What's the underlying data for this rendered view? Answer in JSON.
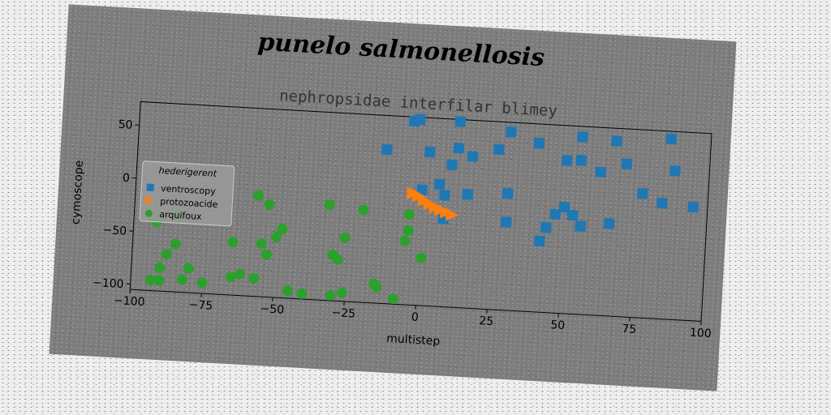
{
  "chart_data": {
    "type": "scatter",
    "suptitle": "punelo salmonellosis",
    "title": "nephropsidae interfilar blimey",
    "xlabel": "multistep",
    "ylabel": "cymoscope",
    "xlim": [
      -100,
      100
    ],
    "ylim": [
      -105,
      72
    ],
    "xticks": [
      -100,
      -75,
      -50,
      -25,
      0,
      25,
      50,
      75,
      100
    ],
    "yticks": [
      -100,
      -50,
      0,
      50
    ],
    "grid": false,
    "legend": {
      "title": "hederigerent",
      "placement": "center-left"
    },
    "series": [
      {
        "name": "ventroscopy",
        "marker": "square",
        "color": "#1f77b4",
        "points": [
          [
            -13,
            40
          ],
          [
            -4,
            68
          ],
          [
            -2,
            70
          ],
          [
            12,
            70
          ],
          [
            30,
            63
          ],
          [
            40,
            54
          ],
          [
            55,
            62
          ],
          [
            67,
            60
          ],
          [
            86,
            65
          ],
          [
            2,
            40
          ],
          [
            12,
            45
          ],
          [
            17,
            38
          ],
          [
            26,
            46
          ],
          [
            50,
            39
          ],
          [
            55,
            40
          ],
          [
            62,
            30
          ],
          [
            71,
            39
          ],
          [
            88,
            35
          ],
          [
            10,
            29
          ],
          [
            6,
            10
          ],
          [
            0,
            4
          ],
          [
            16,
            2
          ],
          [
            30,
            5
          ],
          [
            84,
            4
          ],
          [
            77,
            12
          ],
          [
            95,
            2
          ],
          [
            8,
            0
          ],
          [
            50,
            -5
          ],
          [
            47,
            -12
          ],
          [
            53,
            -12
          ],
          [
            56,
            -22
          ],
          [
            66,
            -18
          ],
          [
            30,
            -22
          ],
          [
            8,
            -22
          ],
          [
            42,
            -38
          ],
          [
            44,
            -25
          ]
        ]
      },
      {
        "name": "protozoacide",
        "marker": "triangle-right",
        "color": "#ff7f0e",
        "points": [
          [
            -3,
            0
          ],
          [
            -1,
            -2
          ],
          [
            1,
            -6
          ],
          [
            3,
            -9
          ],
          [
            5,
            -12
          ],
          [
            7,
            -14
          ],
          [
            9,
            -16
          ],
          [
            11,
            -18
          ]
        ]
      },
      {
        "name": "arquifoux",
        "marker": "circle",
        "color": "#2ca02c",
        "points": [
          [
            -57,
            -10
          ],
          [
            -53,
            -18
          ],
          [
            -32,
            -15
          ],
          [
            -20,
            -18
          ],
          [
            -4,
            -20
          ],
          [
            -4,
            -35
          ],
          [
            -5,
            -45
          ],
          [
            1,
            -60
          ],
          [
            -26,
            -45
          ],
          [
            -48,
            -40
          ],
          [
            -50,
            -48
          ],
          [
            -55,
            -55
          ],
          [
            -65,
            -55
          ],
          [
            -53,
            -65
          ],
          [
            -85,
            -33
          ],
          [
            -92,
            -40
          ],
          [
            -85,
            -60
          ],
          [
            -88,
            -70
          ],
          [
            -90,
            -83
          ],
          [
            -80,
            -82
          ],
          [
            -30,
            -62
          ],
          [
            -28,
            -66
          ],
          [
            -15,
            -87
          ],
          [
            -14,
            -90
          ],
          [
            -57,
            -88
          ],
          [
            -62,
            -85
          ],
          [
            -65,
            -88
          ],
          [
            -90,
            -95
          ],
          [
            -93,
            -95
          ],
          [
            -82,
            -93
          ],
          [
            -75,
            -95
          ],
          [
            -40,
            -100
          ],
          [
            -45,
            -98
          ],
          [
            -30,
            -100
          ],
          [
            -26,
            -97
          ],
          [
            -8,
            -100
          ]
        ]
      }
    ]
  }
}
